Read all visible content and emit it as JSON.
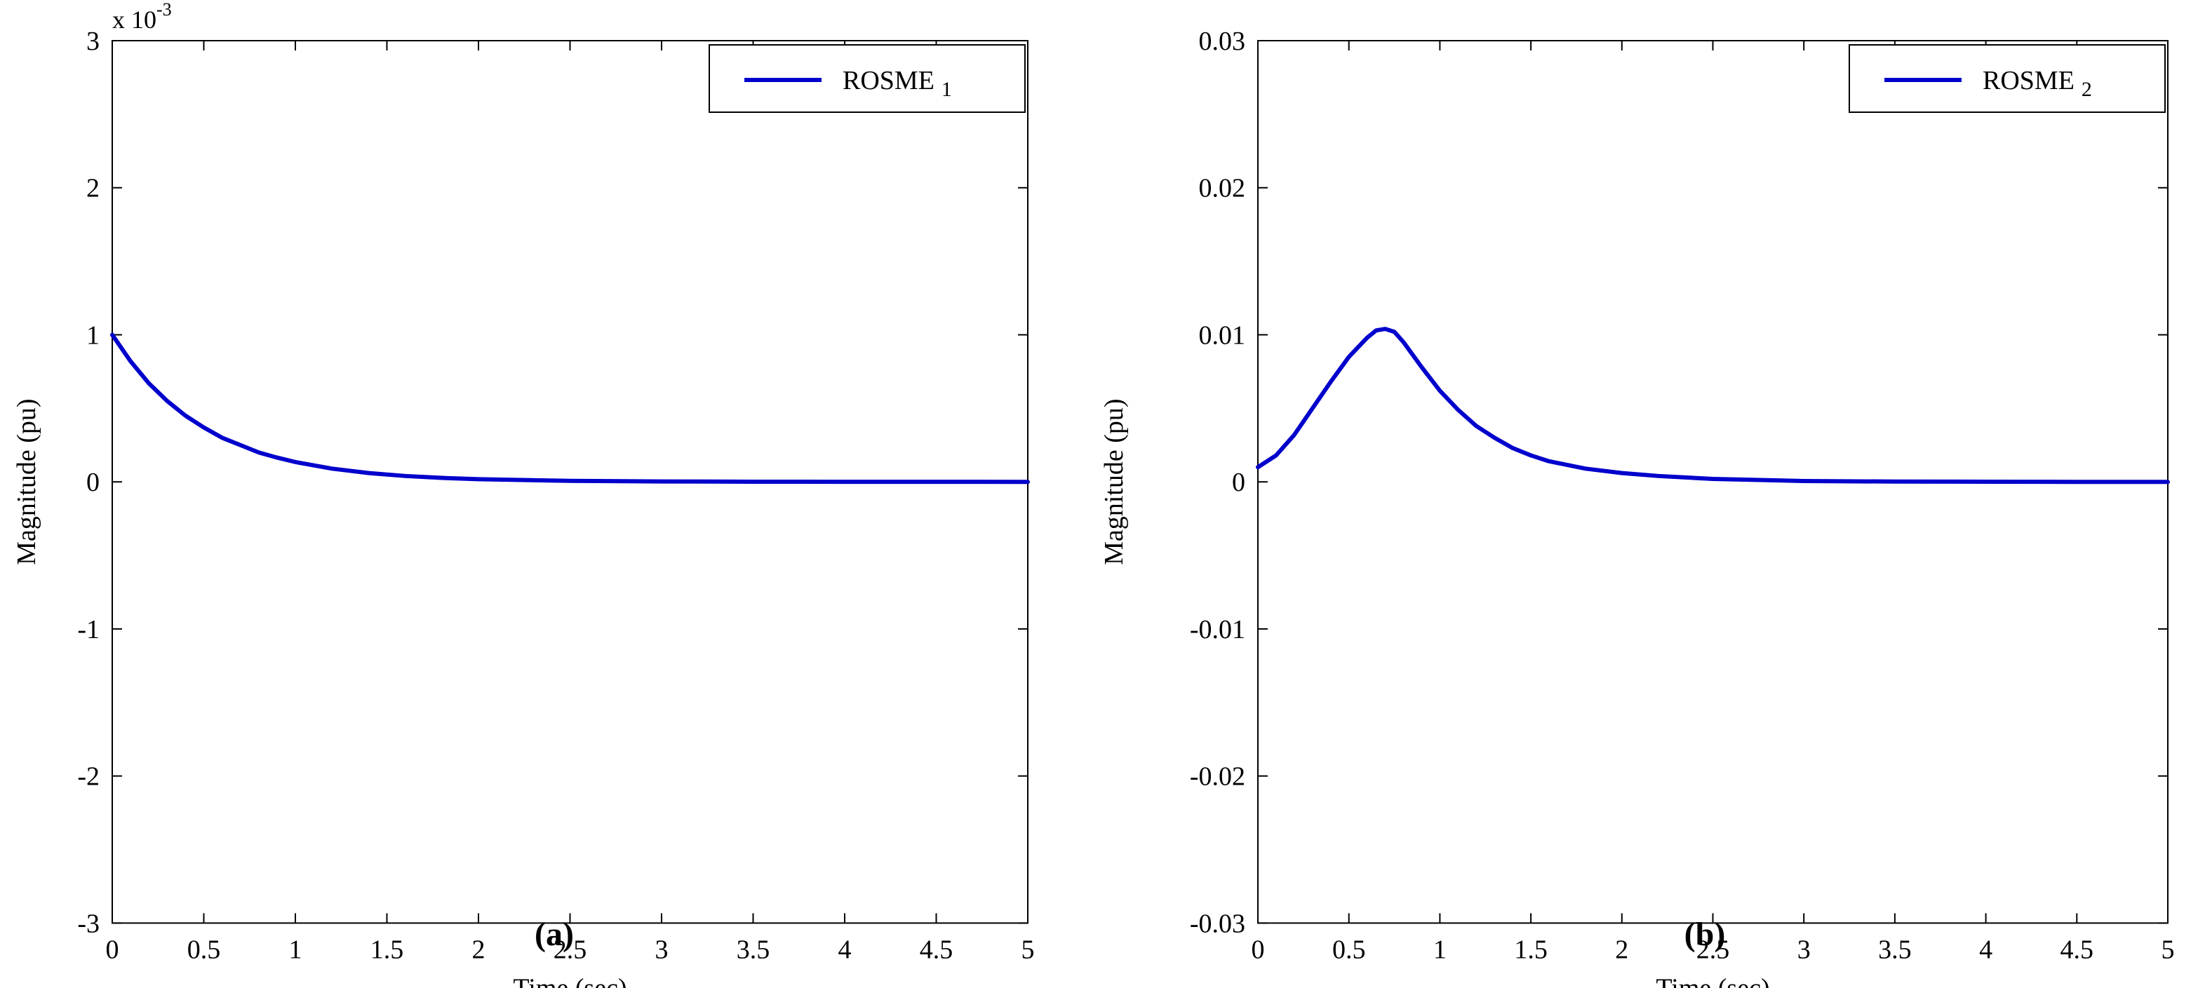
{
  "chart_data": [
    {
      "type": "line",
      "panel_label": "(a)",
      "xlabel": "Time (sec)",
      "ylabel": "Magnitude (pu)",
      "xlim": [
        0,
        5
      ],
      "ylim": [
        -0.003,
        0.003
      ],
      "y_exponent": {
        "base": "x 10",
        "power": "-3"
      },
      "x_ticks": [
        0,
        0.5,
        1,
        1.5,
        2,
        2.5,
        3,
        3.5,
        4,
        4.5,
        5
      ],
      "x_tick_labels": [
        "0",
        "0.5",
        "1",
        "1.5",
        "2",
        "2.5",
        "3",
        "3.5",
        "4",
        "4.5",
        "5"
      ],
      "y_ticks": [
        -0.003,
        -0.002,
        -0.001,
        0,
        0.001,
        0.002,
        0.003
      ],
      "y_tick_labels": [
        "-3",
        "-2",
        "-1",
        "0",
        "1",
        "2",
        "3"
      ],
      "grid": false,
      "legend": "top-right",
      "series": [
        {
          "name": "ROSME",
          "subscript": "1",
          "color": "#0000cc",
          "x": [
            0,
            0.1,
            0.2,
            0.3,
            0.4,
            0.5,
            0.6,
            0.7,
            0.8,
            0.9,
            1.0,
            1.2,
            1.4,
            1.6,
            1.8,
            2.0,
            2.5,
            3.0,
            3.5,
            4.0,
            4.5,
            5.0
          ],
          "values": [
            0.001,
            0.00082,
            0.00067,
            0.00055,
            0.00045,
            0.00037,
            0.0003,
            0.00025,
            0.0002,
            0.000165,
            0.000135,
            9e-05,
            6e-05,
            4e-05,
            2.7e-05,
            1.8e-05,
            7e-06,
            3e-06,
            1e-06,
            5e-07,
            2e-07,
            0.0
          ]
        }
      ]
    },
    {
      "type": "line",
      "panel_label": "(b)",
      "xlabel": "Time (sec)",
      "ylabel": "Magnitude (pu)",
      "xlim": [
        0,
        5
      ],
      "ylim": [
        -0.03,
        0.03
      ],
      "x_ticks": [
        0,
        0.5,
        1,
        1.5,
        2,
        2.5,
        3,
        3.5,
        4,
        4.5,
        5
      ],
      "x_tick_labels": [
        "0",
        "0.5",
        "1",
        "1.5",
        "2",
        "2.5",
        "3",
        "3.5",
        "4",
        "4.5",
        "5"
      ],
      "y_ticks": [
        -0.03,
        -0.02,
        -0.01,
        0,
        0.01,
        0.02,
        0.03
      ],
      "y_tick_labels": [
        "-0.03",
        "-0.02",
        "-0.01",
        "0",
        "0.01",
        "0.02",
        "0.03"
      ],
      "grid": false,
      "legend": "top-right",
      "series": [
        {
          "name": "ROSME",
          "subscript": "2",
          "color": "#0000cc",
          "x": [
            0,
            0.1,
            0.2,
            0.3,
            0.4,
            0.5,
            0.6,
            0.65,
            0.7,
            0.75,
            0.8,
            0.9,
            1.0,
            1.1,
            1.2,
            1.3,
            1.4,
            1.5,
            1.6,
            1.8,
            2.0,
            2.2,
            2.5,
            3.0,
            3.5,
            4.0,
            4.5,
            5.0
          ],
          "values": [
            0.001,
            0.0018,
            0.0032,
            0.005,
            0.0068,
            0.0085,
            0.0098,
            0.0103,
            0.0104,
            0.0102,
            0.0095,
            0.0078,
            0.0062,
            0.0049,
            0.0038,
            0.003,
            0.0023,
            0.0018,
            0.0014,
            0.0009,
            0.0006,
            0.0004,
            0.0002,
            6e-05,
            2e-05,
            1e-05,
            0.0,
            0.0
          ]
        }
      ]
    }
  ]
}
